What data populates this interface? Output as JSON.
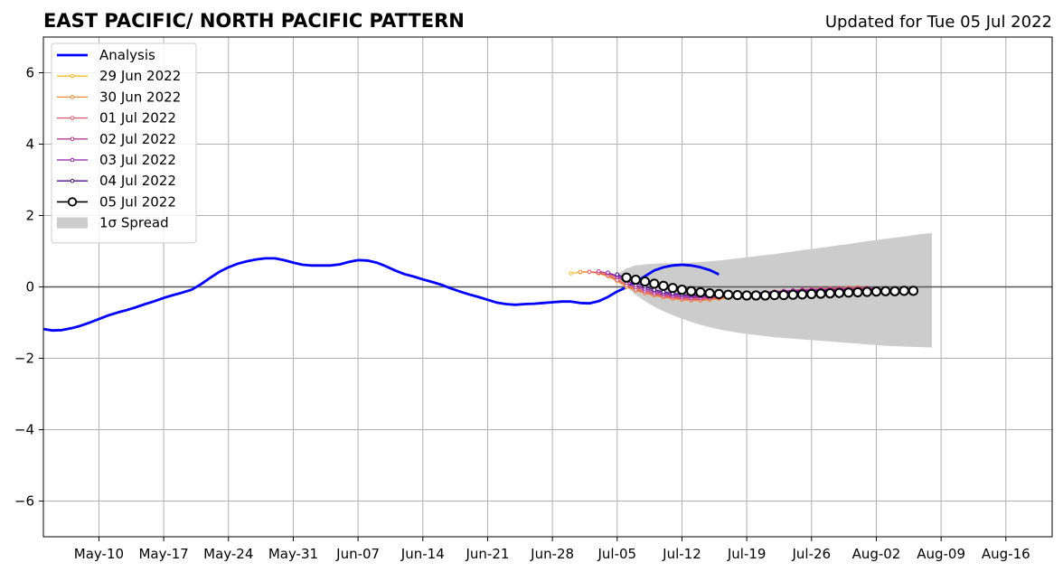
{
  "chart_data": {
    "type": "line",
    "title": "EAST PACIFIC/ NORTH PACIFIC PATTERN",
    "subtitle": "Updated for Tue 05 Jul 2022",
    "xlabel": "",
    "ylabel": "",
    "x_range": [
      "2022-05-04",
      "2022-08-21"
    ],
    "ylim": [
      -7,
      7
    ],
    "grid": true,
    "legend_placement": "top-left",
    "x_ticks": [
      {
        "date": "2022-05-10",
        "label": "May-10"
      },
      {
        "date": "2022-05-17",
        "label": "May-17"
      },
      {
        "date": "2022-05-24",
        "label": "May-24"
      },
      {
        "date": "2022-05-31",
        "label": "May-31"
      },
      {
        "date": "2022-06-07",
        "label": "Jun-07"
      },
      {
        "date": "2022-06-14",
        "label": "Jun-14"
      },
      {
        "date": "2022-06-21",
        "label": "Jun-21"
      },
      {
        "date": "2022-06-28",
        "label": "Jun-28"
      },
      {
        "date": "2022-07-05",
        "label": "Jul-05"
      },
      {
        "date": "2022-07-12",
        "label": "Jul-12"
      },
      {
        "date": "2022-07-19",
        "label": "Jul-19"
      },
      {
        "date": "2022-07-26",
        "label": "Jul-26"
      },
      {
        "date": "2022-08-02",
        "label": "Aug-02"
      },
      {
        "date": "2022-08-09",
        "label": "Aug-09"
      },
      {
        "date": "2022-08-16",
        "label": "Aug-16"
      }
    ],
    "y_ticks": [
      {
        "value": 6,
        "label": "6"
      },
      {
        "value": 4,
        "label": "4"
      },
      {
        "value": 2,
        "label": "2"
      },
      {
        "value": 0,
        "label": "0"
      },
      {
        "value": -2,
        "label": "−2"
      },
      {
        "value": -4,
        "label": "−4"
      },
      {
        "value": -6,
        "label": "−6"
      }
    ],
    "analysis": {
      "name": "Analysis",
      "color": "#0000ff",
      "start_date": "2022-05-04",
      "values": [
        -1.18,
        -1.22,
        -1.21,
        -1.16,
        -1.09,
        -1.0,
        -0.9,
        -0.8,
        -0.72,
        -0.65,
        -0.57,
        -0.48,
        -0.4,
        -0.31,
        -0.23,
        -0.16,
        -0.08,
        0.07,
        0.25,
        0.42,
        0.55,
        0.65,
        0.72,
        0.77,
        0.8,
        0.8,
        0.75,
        0.68,
        0.62,
        0.6,
        0.6,
        0.6,
        0.63,
        0.7,
        0.75,
        0.74,
        0.68,
        0.58,
        0.46,
        0.36,
        0.29,
        0.21,
        0.14,
        0.06,
        -0.04,
        -0.13,
        -0.21,
        -0.28,
        -0.36,
        -0.44,
        -0.48,
        -0.5,
        -0.48,
        -0.47,
        -0.45,
        -0.43,
        -0.41,
        -0.41,
        -0.45,
        -0.46,
        -0.4,
        -0.28,
        -0.13,
        -0.01,
        0.14,
        0.3,
        0.46,
        0.55,
        0.6,
        0.62,
        0.6,
        0.55,
        0.47,
        0.35
      ]
    },
    "forecasts": [
      {
        "name": "29 Jun 2022",
        "color": "#f5b829",
        "start_date": "2022-06-30",
        "values": [
          0.38,
          0.41,
          0.42,
          0.41,
          0.35,
          0.22,
          0.06,
          -0.05,
          -0.14,
          -0.2,
          -0.25,
          -0.29,
          -0.32,
          -0.35,
          -0.36,
          -0.36,
          -0.34,
          -0.31,
          -0.29,
          -0.26,
          -0.23,
          -0.2,
          -0.18,
          -0.15,
          -0.12,
          -0.1,
          -0.08,
          -0.06,
          -0.04,
          -0.03,
          -0.02,
          -0.01
        ]
      },
      {
        "name": "30 Jun 2022",
        "color": "#f08c3c",
        "start_date": "2022-07-01",
        "values": [
          0.42,
          0.42,
          0.38,
          0.3,
          0.16,
          0.0,
          -0.1,
          -0.18,
          -0.24,
          -0.29,
          -0.33,
          -0.36,
          -0.38,
          -0.38,
          -0.36,
          -0.33,
          -0.3,
          -0.27,
          -0.24,
          -0.21,
          -0.18,
          -0.15,
          -0.12,
          -0.1,
          -0.08,
          -0.06,
          -0.05,
          -0.04,
          -0.03,
          -0.02,
          -0.02
        ]
      },
      {
        "name": "01 Jul 2022",
        "color": "#e05a6c",
        "start_date": "2022-07-02",
        "values": [
          0.42,
          0.4,
          0.33,
          0.2,
          0.05,
          -0.07,
          -0.15,
          -0.21,
          -0.26,
          -0.3,
          -0.33,
          -0.35,
          -0.35,
          -0.33,
          -0.31,
          -0.28,
          -0.25,
          -0.22,
          -0.19,
          -0.16,
          -0.13,
          -0.11,
          -0.09,
          -0.07,
          -0.06,
          -0.05,
          -0.04,
          -0.03,
          -0.03,
          -0.02,
          -0.02
        ]
      },
      {
        "name": "02 Jul 2022",
        "color": "#b83c96",
        "start_date": "2022-07-03",
        "values": [
          0.44,
          0.38,
          0.27,
          0.12,
          -0.01,
          -0.1,
          -0.17,
          -0.22,
          -0.26,
          -0.29,
          -0.31,
          -0.31,
          -0.3,
          -0.28,
          -0.26,
          -0.23,
          -0.2,
          -0.18,
          -0.16,
          -0.14,
          -0.12,
          -0.1,
          -0.09,
          -0.08,
          -0.07,
          -0.06,
          -0.05,
          -0.05,
          -0.04,
          -0.04,
          -0.04
        ]
      },
      {
        "name": "03 Jul 2022",
        "color": "#8c1ea8",
        "start_date": "2022-07-04",
        "values": [
          0.4,
          0.31,
          0.18,
          0.05,
          -0.05,
          -0.12,
          -0.18,
          -0.22,
          -0.25,
          -0.27,
          -0.27,
          -0.26,
          -0.25,
          -0.23,
          -0.21,
          -0.19,
          -0.17,
          -0.15,
          -0.14,
          -0.12,
          -0.11,
          -0.1,
          -0.09,
          -0.08,
          -0.08,
          -0.07,
          -0.07,
          -0.07,
          -0.06,
          -0.06,
          -0.06
        ]
      },
      {
        "name": "04 Jul 2022",
        "color": "#4b0f8c",
        "start_date": "2022-07-05",
        "values": [
          0.35,
          0.24,
          0.12,
          0.01,
          -0.08,
          -0.14,
          -0.18,
          -0.21,
          -0.23,
          -0.24,
          -0.24,
          -0.23,
          -0.22,
          -0.21,
          -0.2,
          -0.18,
          -0.17,
          -0.16,
          -0.15,
          -0.14,
          -0.13,
          -0.12,
          -0.11,
          -0.11,
          -0.1,
          -0.1,
          -0.1,
          -0.09,
          -0.09,
          -0.09,
          -0.09
        ]
      },
      {
        "name": "05 Jul 2022",
        "color": "#000000",
        "start_date": "2022-07-06",
        "markers": "open-circle",
        "values": [
          0.26,
          0.2,
          0.15,
          0.09,
          0.03,
          -0.03,
          -0.08,
          -0.12,
          -0.15,
          -0.18,
          -0.2,
          -0.22,
          -0.23,
          -0.24,
          -0.24,
          -0.24,
          -0.23,
          -0.23,
          -0.22,
          -0.21,
          -0.2,
          -0.19,
          -0.18,
          -0.17,
          -0.16,
          -0.15,
          -0.14,
          -0.13,
          -0.12,
          -0.12,
          -0.11,
          -0.11
        ]
      }
    ],
    "spread": {
      "name": "1σ Spread",
      "color": "#cccccc",
      "start_date": "2022-07-05",
      "upper": [
        0.35,
        0.52,
        0.6,
        0.63,
        0.65,
        0.66,
        0.66,
        0.67,
        0.68,
        0.7,
        0.72,
        0.74,
        0.77,
        0.8,
        0.83,
        0.86,
        0.89,
        0.92,
        0.96,
        0.99,
        1.03,
        1.06,
        1.1,
        1.13,
        1.17,
        1.2,
        1.24,
        1.28,
        1.31,
        1.35,
        1.38,
        1.41,
        1.45,
        1.48,
        1.51
      ],
      "lower": [
        0.35,
        0.0,
        -0.22,
        -0.4,
        -0.55,
        -0.68,
        -0.79,
        -0.89,
        -0.98,
        -1.06,
        -1.13,
        -1.19,
        -1.24,
        -1.28,
        -1.32,
        -1.35,
        -1.38,
        -1.41,
        -1.43,
        -1.45,
        -1.47,
        -1.49,
        -1.51,
        -1.53,
        -1.55,
        -1.57,
        -1.59,
        -1.61,
        -1.63,
        -1.65,
        -1.66,
        -1.67,
        -1.68,
        -1.69,
        -1.7
      ]
    },
    "legend": [
      {
        "name": "Analysis",
        "kind": "thick-line",
        "color": "#0000ff"
      },
      {
        "name": "29 Jun 2022",
        "kind": "marker-line",
        "color": "#f5b829"
      },
      {
        "name": "30 Jun 2022",
        "kind": "marker-line",
        "color": "#f08c3c"
      },
      {
        "name": "01 Jul 2022",
        "kind": "marker-line",
        "color": "#e05a6c"
      },
      {
        "name": "02 Jul 2022",
        "kind": "marker-line",
        "color": "#b83c96"
      },
      {
        "name": "03 Jul 2022",
        "kind": "marker-line",
        "color": "#8c1ea8"
      },
      {
        "name": "04 Jul 2022",
        "kind": "marker-line",
        "color": "#4b0f8c"
      },
      {
        "name": "05 Jul 2022",
        "kind": "open-circle-line",
        "color": "#000000"
      },
      {
        "name": "1σ Spread",
        "kind": "patch",
        "color": "#cccccc"
      }
    ]
  }
}
